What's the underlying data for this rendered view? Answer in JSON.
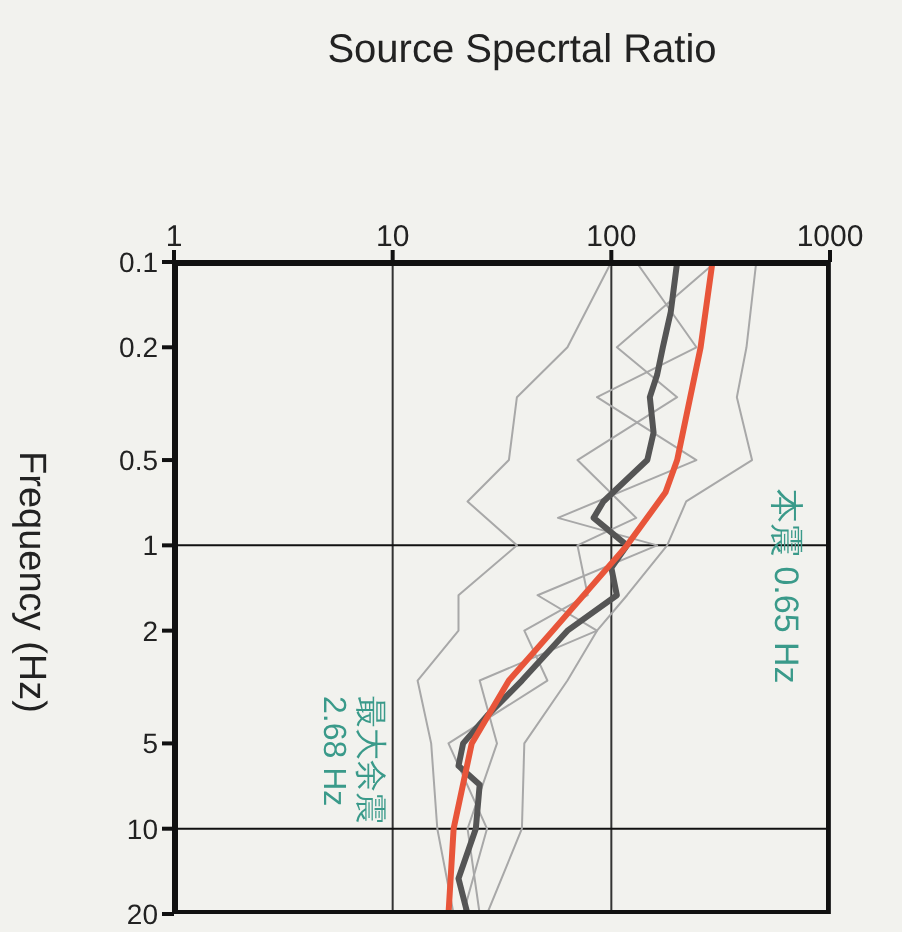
{
  "chart_data": {
    "type": "line",
    "orientation": "horizontal",
    "xlabel": "Source Specrtal Ratio",
    "ylabel": "Frequency (Hz)",
    "log": "xy",
    "xlim": [
      1,
      1000
    ],
    "xticks": [
      1,
      10,
      100,
      1000
    ],
    "ylim": [
      20,
      0.1
    ],
    "yticks": [
      0.1,
      0.2,
      0.5,
      1,
      2,
      5,
      10,
      20
    ],
    "grid": "x",
    "ref_lines": [
      {
        "axis": "y",
        "value": 1,
        "color": "#111111"
      },
      {
        "axis": "y",
        "value": 10,
        "color": "#111111"
      }
    ],
    "annotations": [
      "本震 0.65 Hz",
      "最大余震\n2.68 Hz"
    ],
    "series": [
      {
        "color": "#a8a8a8",
        "x": [
          0.1,
          0.2,
          0.3,
          0.5,
          0.7,
          1,
          1.5,
          2,
          3,
          5,
          10,
          20
        ],
        "values": [
          100,
          63,
          37,
          34,
          22,
          37,
          20,
          20,
          13,
          15,
          16,
          19
        ]
      },
      {
        "color": "#a8a8a8",
        "x": [
          0.1,
          0.2,
          0.3,
          0.5,
          0.7,
          1,
          1.5,
          2,
          3,
          5,
          10,
          20
        ],
        "values": [
          460,
          415,
          375,
          440,
          220,
          180,
          118,
          86,
          63,
          40,
          39,
          27
        ]
      },
      {
        "color": "#a8a8a8",
        "x": [
          0.1,
          0.2,
          0.3,
          0.5,
          0.8,
          1,
          1.5,
          2,
          3,
          5,
          10,
          20
        ],
        "values": [
          130,
          245,
          86,
          245,
          57,
          162,
          46,
          86,
          25,
          30,
          22,
          25
        ]
      },
      {
        "color": "#a8a8a8",
        "x": [
          0.1,
          0.2,
          0.3,
          0.5,
          0.8,
          1,
          1.5,
          2,
          3,
          5,
          10,
          20
        ],
        "values": [
          300,
          106,
          200,
          70,
          130,
          70,
          78,
          40,
          51,
          18,
          27,
          21
        ]
      },
      {
        "color": "#555555",
        "x": [
          0.1,
          0.15,
          0.2,
          0.25,
          0.3,
          0.4,
          0.5,
          0.7,
          0.8,
          1,
          1.2,
          1.5,
          2,
          3,
          4,
          5,
          6,
          7,
          10,
          15,
          20
        ],
        "values": [
          200,
          187,
          172,
          162,
          150,
          156,
          146,
          92,
          83,
          118,
          100,
          106,
          63,
          39,
          27,
          21,
          20,
          25,
          24,
          20,
          22
        ]
      },
      {
        "color": "#e8553a",
        "x": [
          0.1,
          0.2,
          0.5,
          0.65,
          1,
          2,
          3,
          5,
          10,
          20
        ],
        "values": [
          290,
          256,
          200,
          177,
          118,
          54,
          34,
          23,
          19,
          18
        ]
      }
    ]
  }
}
